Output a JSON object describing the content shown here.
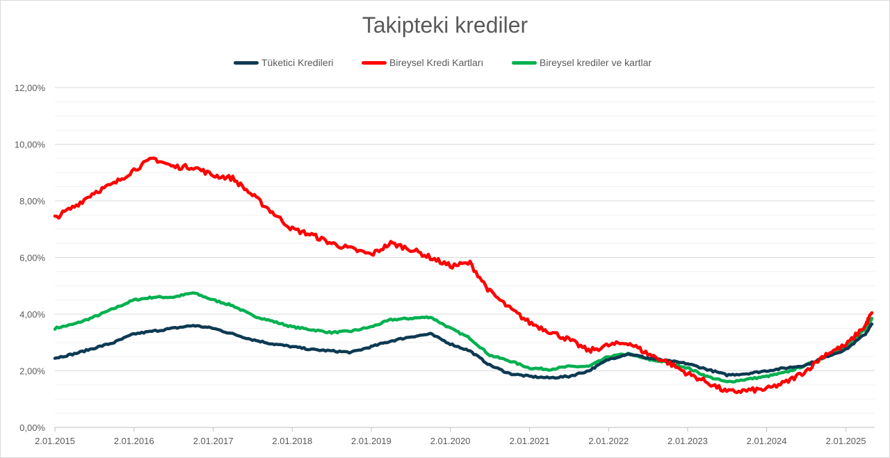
{
  "chart_data": {
    "type": "line",
    "title": "Takipteki krediler",
    "xlabel": "",
    "ylabel": "",
    "ylim": [
      0,
      12
    ],
    "xlim": [
      "2015-01-02",
      "2025-05-15"
    ],
    "y_ticks": [
      "0,00%",
      "2,00%",
      "4,00%",
      "6,00%",
      "8,00%",
      "10,00%",
      "12,00%"
    ],
    "x_ticks": [
      "2.01.2015",
      "2.01.2016",
      "2.01.2017",
      "2.01.2018",
      "2.01.2019",
      "2.01.2020",
      "2.01.2021",
      "2.01.2022",
      "2.01.2023",
      "2.01.2024",
      "2.01.2025"
    ],
    "grid": true,
    "legend_position": "top",
    "x": [
      "2015-01",
      "2015-04",
      "2015-07",
      "2015-10",
      "2016-01",
      "2016-04",
      "2016-07",
      "2016-10",
      "2017-01",
      "2017-04",
      "2017-07",
      "2017-10",
      "2018-01",
      "2018-04",
      "2018-07",
      "2018-10",
      "2019-01",
      "2019-04",
      "2019-07",
      "2019-10",
      "2020-01",
      "2020-04",
      "2020-07",
      "2020-10",
      "2021-01",
      "2021-04",
      "2021-07",
      "2021-10",
      "2022-01",
      "2022-04",
      "2022-07",
      "2022-10",
      "2023-01",
      "2023-04",
      "2023-07",
      "2023-10",
      "2024-01",
      "2024-04",
      "2024-07",
      "2024-10",
      "2025-01",
      "2025-04",
      "2025-05"
    ],
    "series": [
      {
        "name": "Tüketici Kredileri",
        "color": "#0e3a52",
        "values": [
          2.45,
          2.6,
          2.8,
          3.0,
          3.3,
          3.4,
          3.5,
          3.6,
          3.5,
          3.3,
          3.1,
          2.95,
          2.85,
          2.75,
          2.7,
          2.65,
          2.85,
          3.05,
          3.2,
          3.3,
          2.95,
          2.7,
          2.2,
          1.9,
          1.8,
          1.75,
          1.8,
          2.0,
          2.4,
          2.6,
          2.45,
          2.35,
          2.25,
          2.05,
          1.85,
          1.9,
          2.0,
          2.1,
          2.2,
          2.5,
          2.75,
          3.3,
          3.65
        ]
      },
      {
        "name": "Bireysel Kredi Kartları",
        "color": "#ff0000",
        "values": [
          7.4,
          7.8,
          8.3,
          8.6,
          9.1,
          9.5,
          9.2,
          9.2,
          8.9,
          8.8,
          8.2,
          7.6,
          7.0,
          6.8,
          6.5,
          6.3,
          6.1,
          6.5,
          6.3,
          6.0,
          5.7,
          5.8,
          4.8,
          4.2,
          3.7,
          3.4,
          3.1,
          2.7,
          2.9,
          3.0,
          2.6,
          2.3,
          1.9,
          1.6,
          1.25,
          1.3,
          1.35,
          1.6,
          2.0,
          2.6,
          2.9,
          3.6,
          4.05
        ]
      },
      {
        "name": "Bireysel krediler ve kartlar",
        "color": "#00b050",
        "values": [
          3.5,
          3.65,
          3.9,
          4.2,
          4.5,
          4.6,
          4.6,
          4.75,
          4.5,
          4.3,
          3.95,
          3.75,
          3.55,
          3.45,
          3.35,
          3.4,
          3.55,
          3.8,
          3.85,
          3.9,
          3.5,
          3.15,
          2.55,
          2.35,
          2.1,
          2.05,
          2.15,
          2.15,
          2.5,
          2.6,
          2.4,
          2.3,
          2.1,
          1.8,
          1.6,
          1.7,
          1.8,
          1.95,
          2.2,
          2.5,
          2.8,
          3.5,
          3.85
        ]
      }
    ]
  }
}
